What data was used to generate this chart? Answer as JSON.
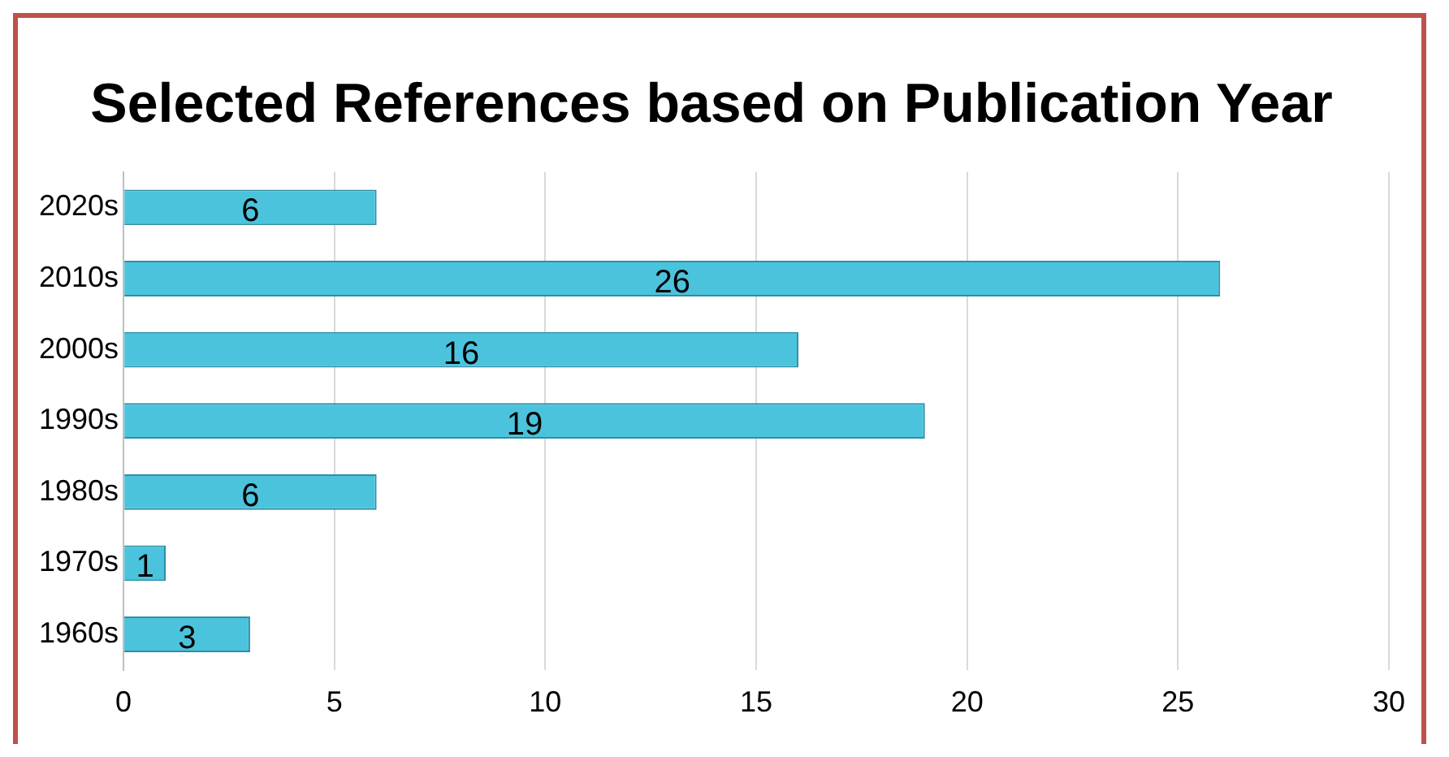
{
  "chart_data": {
    "type": "bar",
    "title": "Selected References based on Publication Year",
    "orientation": "horizontal",
    "categories": [
      "2020s",
      "2010s",
      "2000s",
      "1990s",
      "1980s",
      "1970s",
      "1960s"
    ],
    "values": [
      6,
      26,
      16,
      19,
      6,
      1,
      3
    ],
    "color": "#4cc3dc",
    "xlim": [
      0,
      30
    ],
    "xticks": [
      0,
      5,
      10,
      15,
      20,
      25,
      30
    ],
    "grid": "x",
    "data_labels": true,
    "legend": false
  }
}
